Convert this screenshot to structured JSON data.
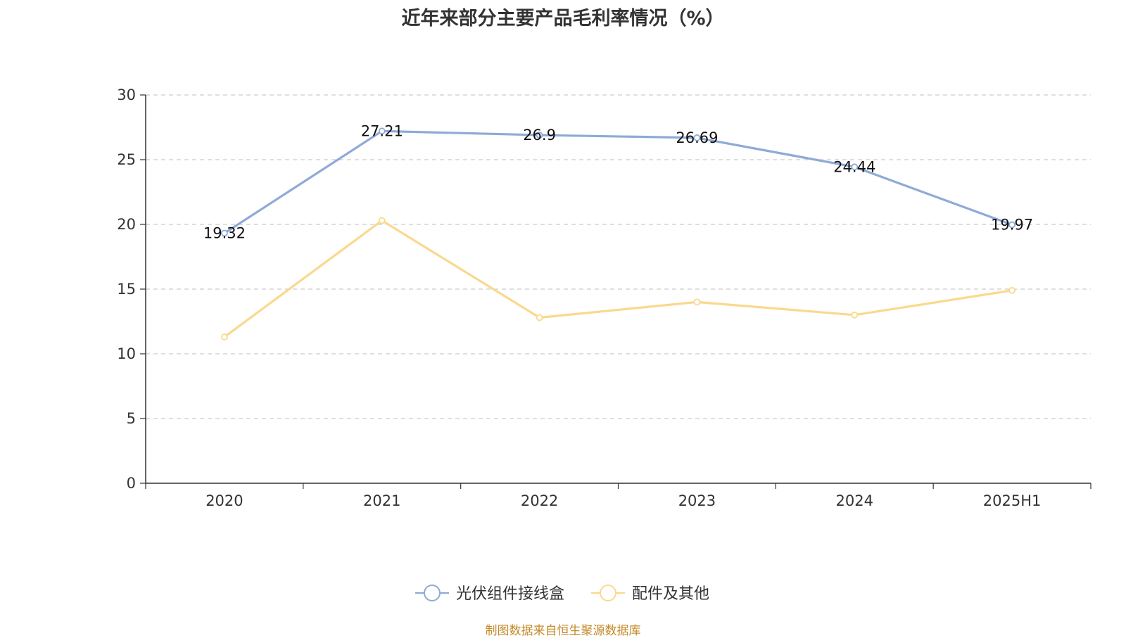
{
  "chart_data": {
    "type": "line",
    "title": "近年来部分主要产品毛利率情况（%）",
    "categories": [
      "2020",
      "2021",
      "2022",
      "2023",
      "2024",
      "2025H1"
    ],
    "ylim": [
      0,
      30
    ],
    "yticks": [
      0,
      5,
      10,
      15,
      20,
      25,
      30
    ],
    "grid": true,
    "legend_position": "bottom-center",
    "series": [
      {
        "name": "光伏组件接线盒",
        "values": [
          19.32,
          27.21,
          26.9,
          26.69,
          24.44,
          19.97
        ],
        "labels": [
          "19.32",
          "27.21",
          "26.9",
          "26.69",
          "24.44",
          "19.97"
        ],
        "color": "#8eaad6",
        "show_labels": true
      },
      {
        "name": "配件及其他",
        "values": [
          11.3,
          20.3,
          12.8,
          14.0,
          13.0,
          14.9
        ],
        "color": "#f9d98d",
        "show_labels": false
      }
    ]
  },
  "source_note": "制图数据来自恒生聚源数据库"
}
